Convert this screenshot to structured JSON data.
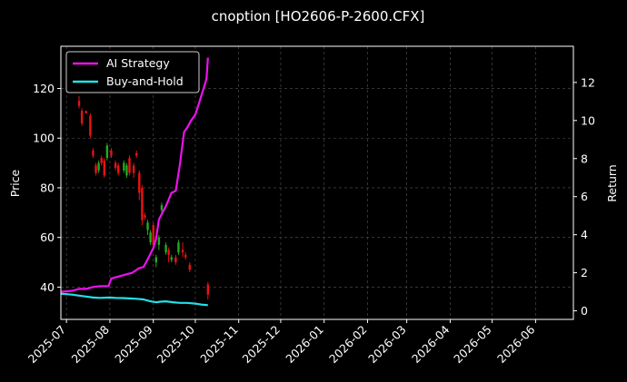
{
  "chart_data": {
    "type": "line",
    "title": "cnoption [HO2606-P-2600.CFX]",
    "ylabel_left": "Price",
    "ylabel_right": "Return",
    "xlim": [
      "2025-06-27",
      "2026-06-28"
    ],
    "ylim_left": [
      27,
      137
    ],
    "ylim_right": [
      -0.45,
      13.9
    ],
    "x_ticks": [
      "2025-07",
      "2025-08",
      "2025-09",
      "2025-10",
      "2025-11",
      "2025-12",
      "2026-01",
      "2026-02",
      "2026-03",
      "2026-04",
      "2026-05",
      "2026-06"
    ],
    "y_ticks_left": [
      40,
      60,
      80,
      100,
      120
    ],
    "y_ticks_right": [
      0,
      2,
      4,
      6,
      8,
      10,
      12
    ],
    "grid": true,
    "legend_position": "upper-left",
    "colors": {
      "background": "#000000",
      "up": "#22aa22",
      "down": "#ee1111",
      "ai": "#ee11ee",
      "bh": "#22e0e8",
      "grid": "#555555"
    },
    "series": [
      {
        "name": "AI Strategy",
        "color": "#ee11ee",
        "axis": "right",
        "x": [
          "2025-06-27",
          "2025-07-05",
          "2025-07-10",
          "2025-07-15",
          "2025-07-20",
          "2025-07-25",
          "2025-07-31",
          "2025-08-02",
          "2025-08-07",
          "2025-08-12",
          "2025-08-17",
          "2025-08-22",
          "2025-08-25",
          "2025-08-28",
          "2025-09-01",
          "2025-09-03",
          "2025-09-05",
          "2025-09-10",
          "2025-09-14",
          "2025-09-17",
          "2025-09-20",
          "2025-09-23",
          "2025-09-25",
          "2025-09-28",
          "2025-10-01",
          "2025-10-04",
          "2025-10-07",
          "2025-10-09",
          "2025-10-10"
        ],
        "values": [
          1.0,
          1.05,
          1.15,
          1.15,
          1.25,
          1.3,
          1.3,
          1.7,
          1.8,
          1.9,
          2.0,
          2.25,
          2.3,
          2.7,
          3.3,
          3.8,
          4.8,
          5.5,
          6.2,
          6.3,
          7.7,
          9.4,
          9.6,
          10.0,
          10.3,
          11.0,
          11.7,
          12.2,
          13.3
        ]
      },
      {
        "name": "Buy-and-Hold",
        "color": "#22e0e8",
        "axis": "right",
        "x": [
          "2025-06-27",
          "2025-07-05",
          "2025-07-10",
          "2025-07-15",
          "2025-07-20",
          "2025-07-25",
          "2025-08-01",
          "2025-08-05",
          "2025-08-10",
          "2025-08-15",
          "2025-08-20",
          "2025-08-25",
          "2025-08-30",
          "2025-09-03",
          "2025-09-06",
          "2025-09-10",
          "2025-09-15",
          "2025-09-20",
          "2025-09-25",
          "2025-10-01",
          "2025-10-05",
          "2025-10-10"
        ],
        "values": [
          0.9,
          0.85,
          0.8,
          0.75,
          0.7,
          0.68,
          0.7,
          0.68,
          0.67,
          0.65,
          0.63,
          0.6,
          0.5,
          0.45,
          0.48,
          0.5,
          0.45,
          0.42,
          0.42,
          0.38,
          0.33,
          0.3
        ]
      }
    ],
    "candles": [
      {
        "x": "2025-07-10",
        "o": 115,
        "c": 113,
        "h": 117,
        "l": 112
      },
      {
        "x": "2025-07-12",
        "o": 111,
        "c": 106,
        "h": 112,
        "l": 105
      },
      {
        "x": "2025-07-15",
        "o": 111,
        "c": 110,
        "h": 111,
        "l": 110
      },
      {
        "x": "2025-07-18",
        "o": 109,
        "c": 101,
        "h": 110,
        "l": 100
      },
      {
        "x": "2025-07-20",
        "o": 95,
        "c": 93,
        "h": 96,
        "l": 92
      },
      {
        "x": "2025-07-22",
        "o": 89,
        "c": 86,
        "h": 90,
        "l": 85
      },
      {
        "x": "2025-07-24",
        "o": 87,
        "c": 90,
        "h": 91,
        "l": 86
      },
      {
        "x": "2025-07-26",
        "o": 92,
        "c": 90,
        "h": 93,
        "l": 89
      },
      {
        "x": "2025-07-28",
        "o": 91,
        "c": 85,
        "h": 92,
        "l": 84
      },
      {
        "x": "2025-07-30",
        "o": 92,
        "c": 97,
        "h": 98,
        "l": 91
      },
      {
        "x": "2025-08-02",
        "o": 95,
        "c": 93,
        "h": 96,
        "l": 92
      },
      {
        "x": "2025-08-05",
        "o": 90,
        "c": 88,
        "h": 91,
        "l": 87
      },
      {
        "x": "2025-08-07",
        "o": 89,
        "c": 86,
        "h": 90,
        "l": 85
      },
      {
        "x": "2025-08-11",
        "o": 87,
        "c": 90,
        "h": 91,
        "l": 86
      },
      {
        "x": "2025-08-13",
        "o": 85,
        "c": 89,
        "h": 90,
        "l": 84
      },
      {
        "x": "2025-08-15",
        "o": 92,
        "c": 86,
        "h": 93,
        "l": 85
      },
      {
        "x": "2025-08-18",
        "o": 89,
        "c": 86,
        "h": 90,
        "l": 84
      },
      {
        "x": "2025-08-20",
        "o": 94,
        "c": 93,
        "h": 95,
        "l": 92
      },
      {
        "x": "2025-08-22",
        "o": 86,
        "c": 78,
        "h": 87,
        "l": 75
      },
      {
        "x": "2025-08-24",
        "o": 80,
        "c": 67,
        "h": 81,
        "l": 65
      },
      {
        "x": "2025-08-26",
        "o": 69,
        "c": 68,
        "h": 70,
        "l": 67
      },
      {
        "x": "2025-08-28",
        "o": 63,
        "c": 66,
        "h": 67,
        "l": 61
      },
      {
        "x": "2025-08-30",
        "o": 58,
        "c": 62,
        "h": 63,
        "l": 57
      },
      {
        "x": "2025-09-01",
        "o": 65,
        "c": 57,
        "h": 66,
        "l": 55
      },
      {
        "x": "2025-09-03",
        "o": 50,
        "c": 52,
        "h": 53,
        "l": 48
      },
      {
        "x": "2025-09-05",
        "o": 57,
        "c": 60,
        "h": 61,
        "l": 55
      },
      {
        "x": "2025-09-07",
        "o": 71,
        "c": 73,
        "h": 74,
        "l": 70
      },
      {
        "x": "2025-09-10",
        "o": 54,
        "c": 57,
        "h": 58,
        "l": 53
      },
      {
        "x": "2025-09-12",
        "o": 55,
        "c": 53,
        "h": 56,
        "l": 50
      },
      {
        "x": "2025-09-14",
        "o": 51,
        "c": 52,
        "h": 53,
        "l": 50
      },
      {
        "x": "2025-09-17",
        "o": 52,
        "c": 50,
        "h": 53,
        "l": 49
      },
      {
        "x": "2025-09-19",
        "o": 54,
        "c": 58,
        "h": 59,
        "l": 53
      },
      {
        "x": "2025-09-22",
        "o": 55,
        "c": 54,
        "h": 58,
        "l": 52
      },
      {
        "x": "2025-09-24",
        "o": 53,
        "c": 52,
        "h": 54,
        "l": 51
      },
      {
        "x": "2025-09-27",
        "o": 49,
        "c": 47,
        "h": 50,
        "l": 46
      },
      {
        "x": "2025-10-10",
        "o": 41,
        "c": 37,
        "h": 42,
        "l": 35
      }
    ]
  }
}
